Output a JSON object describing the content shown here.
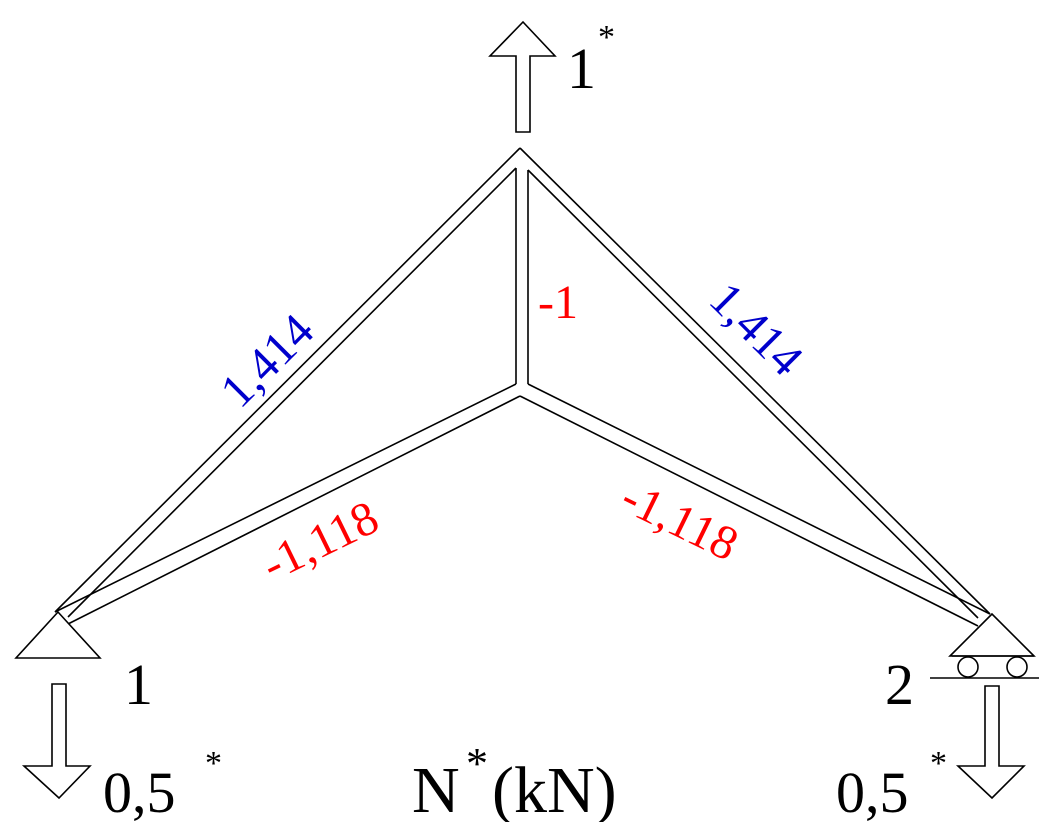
{
  "diagram_title": {
    "symbol": "N",
    "star": "*",
    "unit": "(kN)"
  },
  "loads": {
    "top": {
      "value": "1",
      "star": "*"
    },
    "left": {
      "value": "0,5",
      "star": "*"
    },
    "right": {
      "value": "0,5",
      "star": "*"
    }
  },
  "supports": {
    "left_label": "1",
    "right_label": "2"
  },
  "member_forces": {
    "left_top_chord": "1,414",
    "right_top_chord": "1,414",
    "vertical": "-1",
    "left_bottom_chord": "-1,118",
    "right_bottom_chord": "-1,118"
  },
  "colors": {
    "tension": "#0000cc",
    "compression": "#ff0000",
    "structure": "#000000"
  }
}
